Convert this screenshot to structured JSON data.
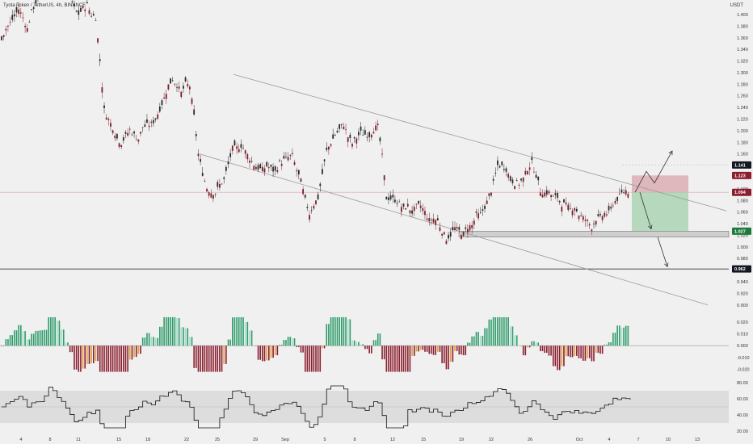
{
  "header": {
    "symbol": "Tyota Token / TetherUS, 4h, BINANCE",
    "currency": "USDT"
  },
  "colors": {
    "up": "#26a69a",
    "down": "#7a1f2b",
    "candle_body": "#2b2b2b",
    "osc_pos_strong": "#2e9c6a",
    "osc_pos_weak": "#a8dccf",
    "osc_neg_strong": "#8b1f2f",
    "osc_neg_weak": "#e0a040",
    "rsi_band": "#d8d8d8",
    "risk_zone": "#d9a6ad",
    "reward_zone": "#a7d3b0",
    "support_zone": "#cfcfcf"
  },
  "chart_data": {
    "type": "candlestick",
    "interval": "4h",
    "price_axis": {
      "ticks": [
        "1.400",
        "1.380",
        "1.360",
        "1.340",
        "1.320",
        "1.300",
        "1.280",
        "1.260",
        "1.240",
        "1.220",
        "1.200",
        "1.180",
        "1.160",
        "1.140",
        "1.120",
        "1.100",
        "1.080",
        "1.060",
        "1.040",
        "1.020",
        "1.000",
        "0.980",
        "0.960",
        "0.940",
        "0.920",
        "0.900"
      ],
      "range": [
        0.89,
        1.425
      ]
    },
    "price_labels": [
      {
        "value": 1.141,
        "text": "1.141",
        "style": "dark"
      },
      {
        "value": 1.123,
        "text": "1.123",
        "style": "red"
      },
      {
        "value": 1.094,
        "text": "1.094",
        "style": "red"
      },
      {
        "value": 1.027,
        "text": "1.027",
        "style": "green"
      },
      {
        "value": 0.962,
        "text": "0.962",
        "style": "dark"
      }
    ],
    "time_axis": [
      "4",
      "8",
      "11",
      "15",
      "18",
      "22",
      "25",
      "29",
      "Sep",
      "5",
      "8",
      "12",
      "15",
      "19",
      "22",
      "26",
      "Oct",
      "4",
      "7",
      "10",
      "13"
    ],
    "close_path": [
      [
        0,
        1.36
      ],
      [
        2,
        1.39
      ],
      [
        4,
        1.41
      ],
      [
        6,
        1.38
      ],
      [
        8,
        1.42
      ],
      [
        10,
        1.45
      ],
      [
        12,
        1.48
      ],
      [
        14,
        1.46
      ],
      [
        16,
        1.43
      ],
      [
        18,
        1.4
      ],
      [
        20,
        1.42
      ],
      [
        22,
        1.39
      ],
      [
        24,
        1.24
      ],
      [
        26,
        1.2
      ],
      [
        28,
        1.18
      ],
      [
        30,
        1.2
      ],
      [
        32,
        1.19
      ],
      [
        34,
        1.21
      ],
      [
        36,
        1.22
      ],
      [
        38,
        1.26
      ],
      [
        40,
        1.29
      ],
      [
        42,
        1.27
      ],
      [
        44,
        1.28
      ],
      [
        46,
        1.16
      ],
      [
        48,
        1.1
      ],
      [
        50,
        1.09
      ],
      [
        52,
        1.12
      ],
      [
        54,
        1.17
      ],
      [
        56,
        1.18
      ],
      [
        58,
        1.15
      ],
      [
        60,
        1.13
      ],
      [
        62,
        1.14
      ],
      [
        64,
        1.13
      ],
      [
        66,
        1.15
      ],
      [
        68,
        1.16
      ],
      [
        70,
        1.11
      ],
      [
        72,
        1.06
      ],
      [
        74,
        1.08
      ],
      [
        76,
        1.16
      ],
      [
        78,
        1.19
      ],
      [
        80,
        1.21
      ],
      [
        82,
        1.18
      ],
      [
        84,
        1.2
      ],
      [
        86,
        1.19
      ],
      [
        88,
        1.21
      ],
      [
        90,
        1.09
      ],
      [
        92,
        1.08
      ],
      [
        94,
        1.07
      ],
      [
        96,
        1.06
      ],
      [
        98,
        1.07
      ],
      [
        100,
        1.05
      ],
      [
        102,
        1.04
      ],
      [
        104,
        1.02
      ],
      [
        106,
        1.03
      ],
      [
        108,
        1.02
      ],
      [
        110,
        1.04
      ],
      [
        112,
        1.06
      ],
      [
        114,
        1.09
      ],
      [
        116,
        1.14
      ],
      [
        118,
        1.13
      ],
      [
        120,
        1.11
      ],
      [
        122,
        1.12
      ],
      [
        124,
        1.15
      ],
      [
        126,
        1.1
      ],
      [
        128,
        1.09
      ],
      [
        130,
        1.09
      ],
      [
        132,
        1.07
      ],
      [
        134,
        1.07
      ],
      [
        136,
        1.05
      ],
      [
        138,
        1.04
      ],
      [
        140,
        1.05
      ],
      [
        142,
        1.06
      ],
      [
        144,
        1.08
      ],
      [
        146,
        1.1
      ],
      [
        147,
        1.094
      ]
    ],
    "channel": {
      "upper": [
        [
          0.31,
          1.297
        ],
        [
          0.965,
          1.062
        ]
      ],
      "lower": [
        [
          0.265,
          1.16
        ],
        [
          0.94,
          0.9
        ]
      ]
    },
    "oscillator": {
      "axis_ticks": [
        "0.020",
        "0.010",
        "0.000",
        "-0.010",
        "-0.020"
      ],
      "range": [
        -0.025,
        0.026
      ]
    },
    "rsi": {
      "axis_ticks": [
        "80.00",
        "60.00",
        "40.00",
        "20.00"
      ],
      "range": [
        14,
        84
      ],
      "band": [
        30,
        70
      ],
      "midline": 50
    }
  }
}
